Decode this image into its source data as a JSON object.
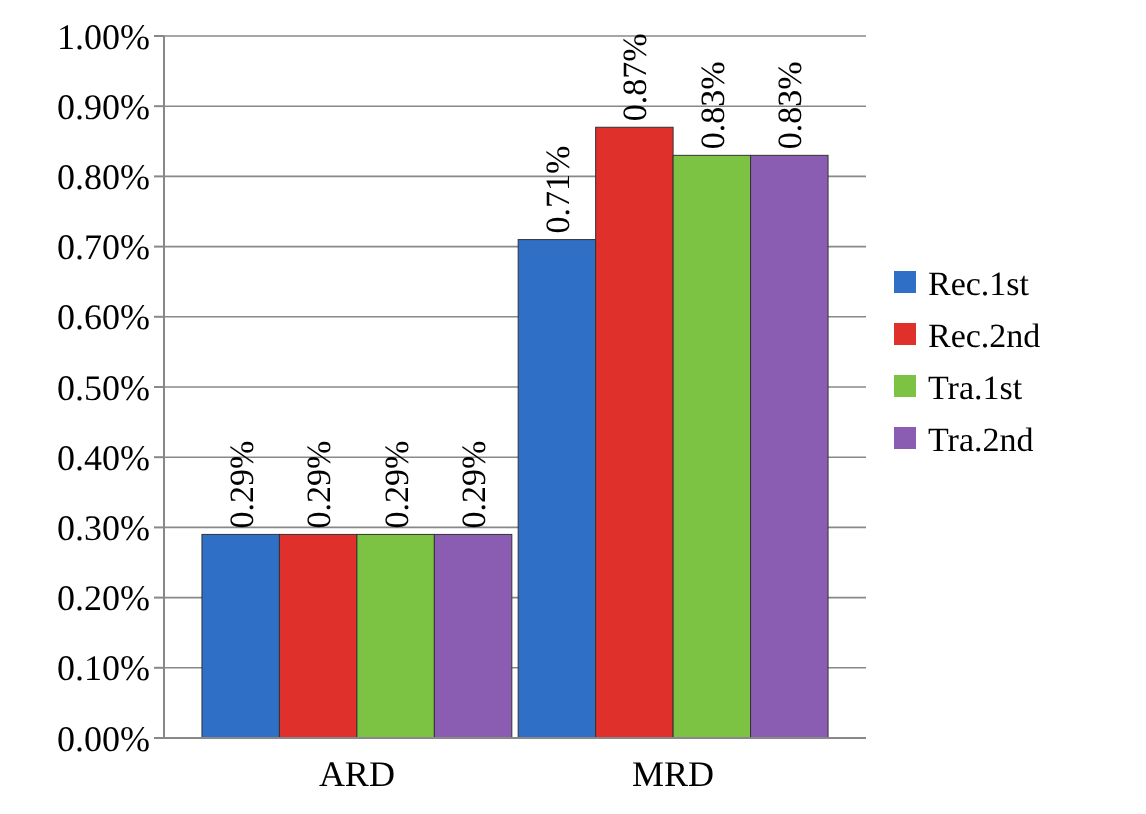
{
  "chart_data": {
    "type": "bar",
    "categories": [
      "ARD",
      "MRD"
    ],
    "series": [
      {
        "name": "Rec.1st",
        "color": "#2f6fc6",
        "values": [
          0.29,
          0.71
        ],
        "value_labels": [
          "0.29%",
          "0.71%"
        ]
      },
      {
        "name": "Rec.2nd",
        "color": "#e0302c",
        "values": [
          0.29,
          0.87
        ],
        "value_labels": [
          "0.29%",
          "0.87%"
        ]
      },
      {
        "name": "Tra.1st",
        "color": "#7cc243",
        "values": [
          0.29,
          0.83
        ],
        "value_labels": [
          "0.29%",
          "0.83%"
        ]
      },
      {
        "name": "Tra.2nd",
        "color": "#8a5cb2",
        "values": [
          0.29,
          0.83
        ],
        "value_labels": [
          "0.29%",
          "0.83%"
        ]
      }
    ],
    "ylim": [
      0,
      1
    ],
    "yticks": [
      {
        "value": 0,
        "label": "0.00%"
      },
      {
        "value": 0.1,
        "label": "0.10%"
      },
      {
        "value": 0.2,
        "label": "0.20%"
      },
      {
        "value": 0.3,
        "label": "0.30%"
      },
      {
        "value": 0.4,
        "label": "0.40%"
      },
      {
        "value": 0.5,
        "label": "0.50%"
      },
      {
        "value": 0.6,
        "label": "0.60%"
      },
      {
        "value": 0.7,
        "label": "0.70%"
      },
      {
        "value": 0.8,
        "label": "0.80%"
      },
      {
        "value": 0.9,
        "label": "0.90%"
      },
      {
        "value": 1,
        "label": "1.00%"
      }
    ],
    "grid": true,
    "legend": "right"
  }
}
